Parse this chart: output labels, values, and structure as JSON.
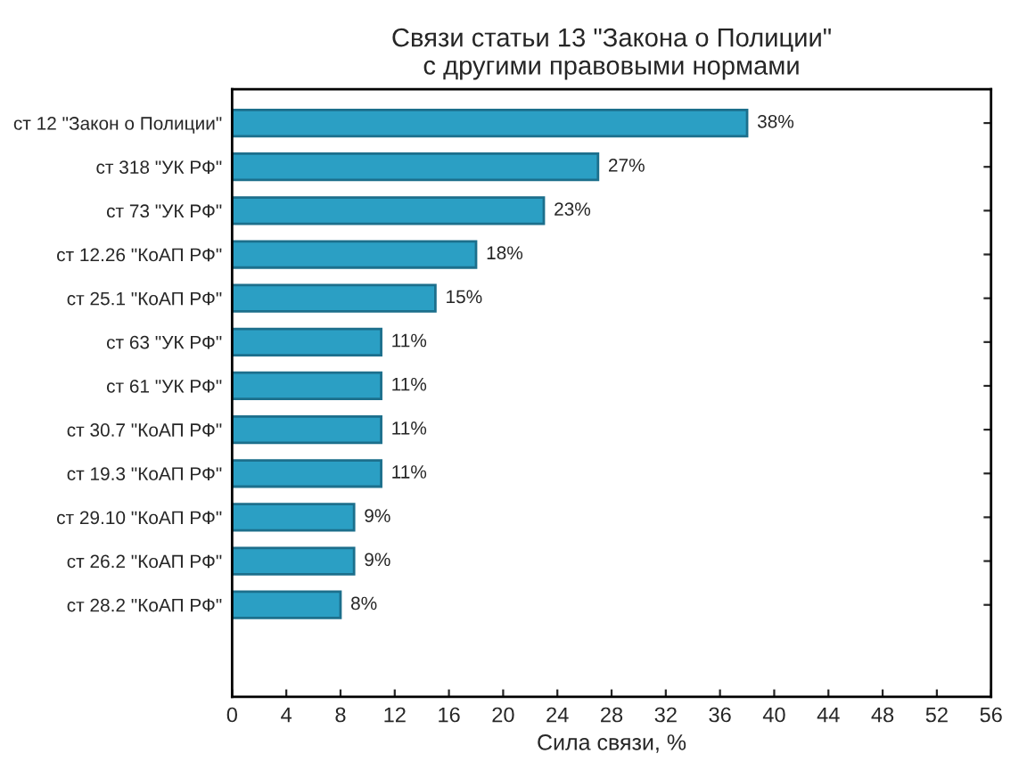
{
  "chart_data": {
    "type": "bar",
    "orientation": "horizontal",
    "title": "Связи статьи 13 \"Закона о Полиции\"\nс другими правовыми нормами",
    "xlabel": "Сила связи, %",
    "categories": [
      "ст 12 \"Закон о Полиции\"",
      "ст 318 \"УК РФ\"",
      "ст 73 \"УК РФ\"",
      "ст 12.26 \"КоАП РФ\"",
      "ст 25.1 \"КоАП РФ\"",
      "ст 63 \"УК РФ\"",
      "ст 61 \"УК РФ\"",
      "ст 30.7 \"КоАП РФ\"",
      "ст 19.3 \"КоАП РФ\"",
      "ст 29.10 \"КоАП РФ\"",
      "ст 26.2 \"КоАП РФ\"",
      "ст 28.2 \"КоАП РФ\""
    ],
    "values": [
      38,
      27,
      23,
      18,
      15,
      11,
      11,
      11,
      11,
      9,
      9,
      8
    ],
    "value_labels": [
      "38%",
      "27%",
      "23%",
      "18%",
      "15%",
      "11%",
      "11%",
      "11%",
      "11%",
      "9%",
      "9%",
      "8%"
    ],
    "color": "#2b9fc4",
    "xlim": [
      0,
      56
    ],
    "xticks": [
      0,
      4,
      8,
      12,
      16,
      20,
      24,
      28,
      32,
      36,
      40,
      44,
      48,
      52,
      56
    ],
    "grid": false,
    "legend": false
  }
}
